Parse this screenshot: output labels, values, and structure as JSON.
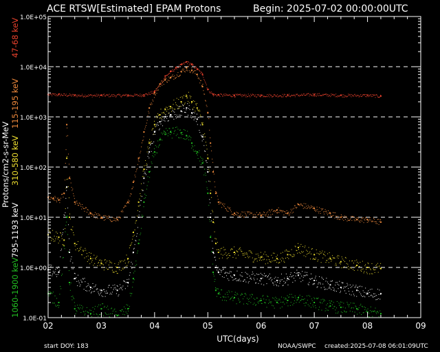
{
  "header": {
    "title": "ACE RTSW[Estimated] EPAM Protons",
    "begin": "Begin: 2025-07-02 00:00:00UTC"
  },
  "footer": {
    "start_doy": "start DOY:  183",
    "credit": "NOAA/SWPC",
    "created": "created:2025-07-08 06:01:09UTC"
  },
  "colors": {
    "background": "#000000",
    "axes": "#ffffff",
    "grid": "#ffffff",
    "ch_47_68": "#e8412c",
    "ch_115_195": "#f08a3c",
    "ch_310_580": "#f0e030",
    "ch_795_1193": "#ffffff",
    "ch_1060_1900": "#22c022"
  },
  "chart_data": {
    "type": "scatter",
    "title": "ACE RTSW[Estimated] EPAM Protons",
    "xlabel": "UTC(days)",
    "ylabel": "Protons/cm2-s-sr-MeV",
    "yscale": "log",
    "xlim": [
      2,
      9
    ],
    "ylim": [
      0.1,
      100000
    ],
    "x_ticks": [
      "02",
      "03",
      "04",
      "05",
      "06",
      "07",
      "08",
      "09"
    ],
    "y_ticks": [
      "1.0E-01",
      "1.0E+00",
      "1.0E+01",
      "1.0E+02",
      "1.0E+03",
      "1.0E+04",
      "1.0E+05"
    ],
    "grid": "dashed horizontal lines at each decade",
    "legend": "left side, vertical labels",
    "series": [
      {
        "name": "47-68 keV",
        "color": "#e8412c",
        "x": [
          2.0,
          2.2,
          2.5,
          3.0,
          3.5,
          3.8,
          4.0,
          4.1,
          4.2,
          4.3,
          4.4,
          4.5,
          4.6,
          4.7,
          4.8,
          4.9,
          5.0,
          5.1,
          5.2,
          5.5,
          6.0,
          6.5,
          7.0,
          7.5,
          8.0,
          8.25
        ],
        "y": [
          2800,
          2800,
          2700,
          2700,
          2700,
          2750,
          3200,
          4500,
          6500,
          8000,
          9500,
          11000,
          12500,
          11000,
          9000,
          7000,
          3500,
          2800,
          2750,
          2700,
          2700,
          2700,
          2800,
          2700,
          2700,
          2600
        ]
      },
      {
        "name": "115-195 keV",
        "color": "#f08a3c",
        "x": [
          2.0,
          2.1,
          2.2,
          2.3,
          2.35,
          2.4,
          2.5,
          2.8,
          3.0,
          3.3,
          3.5,
          3.6,
          3.7,
          3.8,
          3.9,
          4.0,
          4.1,
          4.2,
          4.3,
          4.5,
          4.6,
          4.7,
          4.8,
          4.9,
          5.0,
          5.05,
          5.1,
          5.15,
          5.2,
          5.5,
          6.0,
          6.3,
          6.5,
          6.7,
          7.0,
          7.3,
          7.5,
          7.8,
          8.0,
          8.25
        ],
        "y": [
          25,
          24,
          22,
          30,
          700,
          60,
          20,
          12,
          10,
          9,
          20,
          50,
          150,
          500,
          1500,
          3000,
          4500,
          5500,
          6000,
          8000,
          9500,
          8500,
          7000,
          4000,
          1200,
          300,
          80,
          30,
          20,
          12,
          11,
          14,
          12,
          18,
          15,
          12,
          10,
          9,
          9,
          8
        ]
      },
      {
        "name": "310-580 keV",
        "color": "#f0e030",
        "x": [
          2.0,
          2.2,
          2.3,
          2.35,
          2.4,
          2.5,
          2.8,
          3.0,
          3.3,
          3.5,
          3.6,
          3.7,
          3.8,
          3.9,
          4.0,
          4.1,
          4.2,
          4.3,
          4.5,
          4.6,
          4.7,
          4.8,
          4.9,
          5.0,
          5.05,
          5.1,
          5.15,
          5.2,
          5.5,
          6.0,
          6.3,
          6.5,
          6.7,
          7.0,
          7.3,
          7.5,
          7.8,
          8.0,
          8.25
        ],
        "y": [
          4.5,
          4,
          3.5,
          150,
          10,
          3,
          1.5,
          1.2,
          1.0,
          1.5,
          5,
          20,
          90,
          300,
          700,
          1100,
          1400,
          1600,
          2000,
          2600,
          2000,
          1500,
          700,
          150,
          30,
          8,
          3,
          2,
          2,
          1.6,
          1.5,
          1.8,
          2.5,
          1.8,
          1.5,
          1.3,
          1.1,
          1.0,
          0.95
        ]
      },
      {
        "name": "795-1193 keV",
        "color": "#ffffff",
        "x": [
          2.0,
          2.2,
          2.35,
          2.4,
          2.5,
          2.8,
          3.0,
          3.3,
          3.5,
          3.6,
          3.7,
          3.8,
          3.9,
          4.0,
          4.1,
          4.2,
          4.3,
          4.5,
          4.6,
          4.7,
          4.8,
          4.9,
          5.0,
          5.05,
          5.1,
          5.15,
          5.2,
          5.5,
          6.0,
          6.3,
          6.5,
          6.7,
          7.0,
          7.3,
          7.5,
          7.8,
          8.0,
          8.25
        ],
        "y": [
          0.9,
          0.8,
          40,
          2,
          0.6,
          0.4,
          0.35,
          0.35,
          0.5,
          2,
          10,
          60,
          200,
          500,
          800,
          1000,
          1100,
          1300,
          1500,
          1200,
          900,
          400,
          80,
          10,
          2,
          1,
          0.8,
          0.7,
          0.6,
          0.55,
          0.6,
          0.7,
          0.55,
          0.45,
          0.4,
          0.35,
          0.3,
          0.3
        ]
      },
      {
        "name": "1060-1900 keV",
        "color": "#22c022",
        "x": [
          2.0,
          2.2,
          2.35,
          2.4,
          2.5,
          2.8,
          3.0,
          3.3,
          3.5,
          3.6,
          3.7,
          3.8,
          3.9,
          4.0,
          4.1,
          4.2,
          4.3,
          4.5,
          4.6,
          4.7,
          4.8,
          4.9,
          5.0,
          5.05,
          5.1,
          5.15,
          5.2,
          5.5,
          6.0,
          6.3,
          6.5,
          6.7,
          7.0,
          7.3,
          7.5,
          7.8,
          8.0,
          8.25
        ],
        "y": [
          0.3,
          0.2,
          10,
          0.5,
          0.15,
          0.12,
          0.15,
          0.11,
          0.15,
          0.6,
          3,
          20,
          80,
          200,
          350,
          450,
          500,
          480,
          420,
          300,
          200,
          120,
          30,
          4,
          0.8,
          0.35,
          0.3,
          0.25,
          0.22,
          0.2,
          0.22,
          0.25,
          0.2,
          0.17,
          0.16,
          0.15,
          0.13,
          0.12
        ]
      }
    ]
  }
}
